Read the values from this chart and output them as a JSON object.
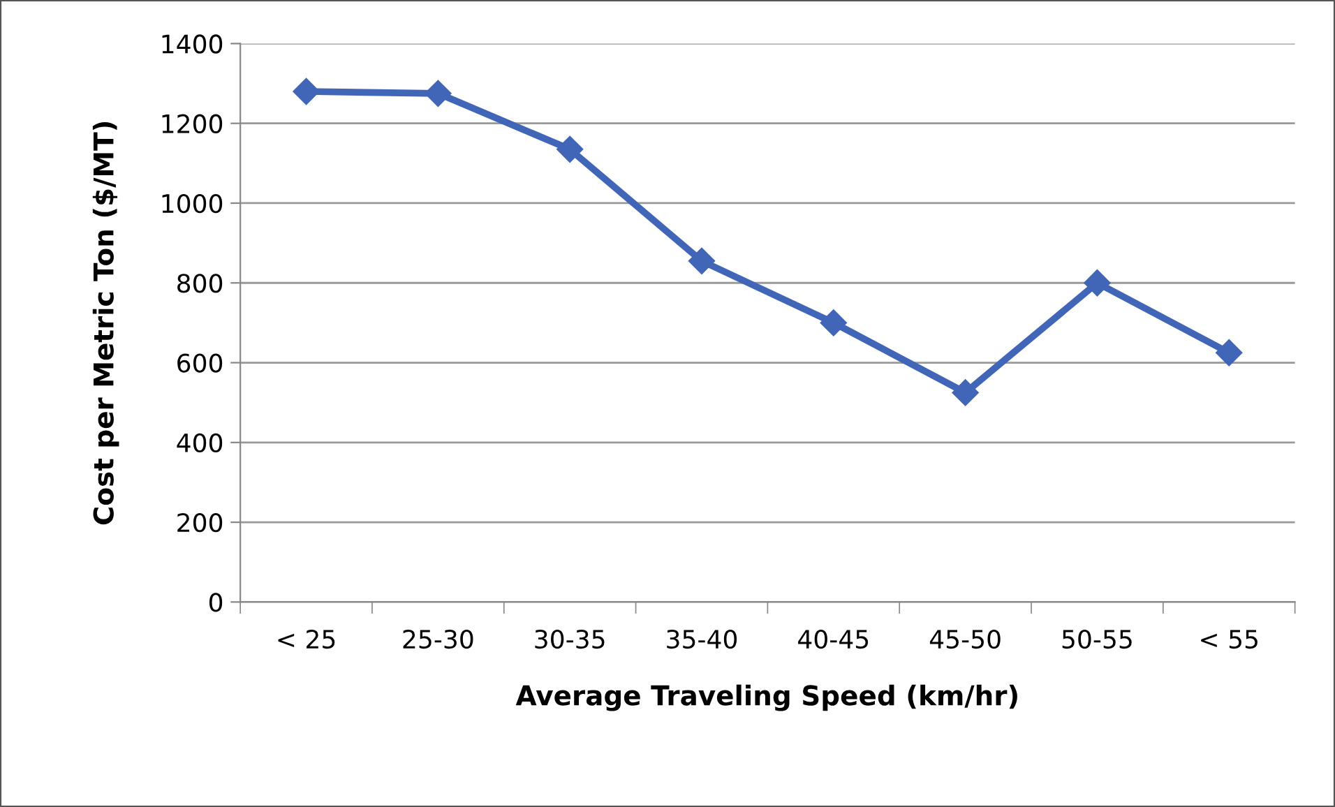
{
  "chart_data": {
    "type": "line",
    "xlabel": "Average Traveling Speed (km/hr)",
    "ylabel": "Cost per Metric Ton ($/MT)",
    "categories": [
      "< 25",
      "25-30",
      "30-35",
      "35-40",
      "40-45",
      "45-50",
      "50-55",
      "< 55"
    ],
    "series": [
      {
        "color": "#4166b8",
        "values": [
          1280,
          1275,
          1135,
          855,
          700,
          525,
          800,
          625
        ]
      }
    ],
    "ylim": [
      0,
      1400
    ],
    "yticks": [
      0,
      200,
      400,
      600,
      800,
      1000,
      1200,
      1400
    ],
    "grid": "y",
    "marker": "diamond",
    "line_style": "solid"
  }
}
